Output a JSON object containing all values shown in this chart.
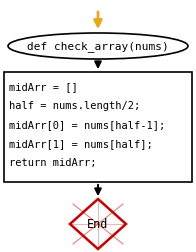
{
  "bg_color": "#ffffff",
  "arrow_color": "#000000",
  "start_arrow_color": "#e6a817",
  "ellipse_text": "def check_array(nums)",
  "ellipse_bg": "#ffffff",
  "ellipse_border": "#000000",
  "rect_text": [
    "midArr = []",
    "half = nums.length/2;",
    "midArr[0] = nums[half-1];",
    "midArr[1] = nums[half];",
    "return midArr;"
  ],
  "rect_bg": "#ffffff",
  "rect_border": "#000000",
  "diamond_text": "End",
  "diamond_bg": "#ffffff",
  "diamond_border": "#cc0000",
  "font_family": "monospace",
  "font_size": 7.5,
  "ellipse_font_size": 8.0
}
